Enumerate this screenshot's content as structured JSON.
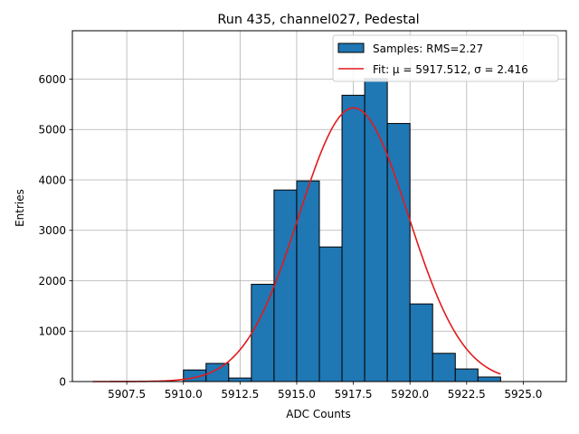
{
  "chart_data": {
    "type": "bar",
    "title": "Run 435, channel027, Pedestal",
    "xlabel": "ADC Counts",
    "ylabel": "Entries",
    "xlim": [
      5905.1,
      5926.9
    ],
    "ylim": [
      0,
      6960
    ],
    "xticks": [
      5907.5,
      5910.0,
      5912.5,
      5915.0,
      5917.5,
      5920.0,
      5922.5,
      5925.0
    ],
    "xtick_labels": [
      "5907.5",
      "5910.0",
      "5912.5",
      "5915.0",
      "5917.5",
      "5920.0",
      "5922.5",
      "5925.0"
    ],
    "yticks": [
      0,
      1000,
      2000,
      3000,
      4000,
      5000,
      6000
    ],
    "ytick_labels": [
      "0",
      "1000",
      "2000",
      "3000",
      "4000",
      "5000",
      "6000"
    ],
    "grid": true,
    "histogram": {
      "name": "Samples: RMS=2.27",
      "color": "#1f77b4",
      "edge_color": "#000000",
      "bins": [
        {
          "x0": 5910.0,
          "x1": 5911.0,
          "value": 230
        },
        {
          "x0": 5911.0,
          "x1": 5912.0,
          "value": 360
        },
        {
          "x0": 5912.0,
          "x1": 5913.0,
          "value": 70
        },
        {
          "x0": 5913.0,
          "x1": 5914.0,
          "value": 1930
        },
        {
          "x0": 5914.0,
          "x1": 5915.0,
          "value": 3800
        },
        {
          "x0": 5915.0,
          "x1": 5916.0,
          "value": 3980
        },
        {
          "x0": 5916.0,
          "x1": 5917.0,
          "value": 2670
        },
        {
          "x0": 5917.0,
          "x1": 5918.0,
          "value": 5680
        },
        {
          "x0": 5918.0,
          "x1": 5919.0,
          "value": 6010
        },
        {
          "x0": 5919.0,
          "x1": 5920.0,
          "value": 5120
        },
        {
          "x0": 5920.0,
          "x1": 5921.0,
          "value": 1540
        },
        {
          "x0": 5921.0,
          "x1": 5922.0,
          "value": 560
        },
        {
          "x0": 5922.0,
          "x1": 5923.0,
          "value": 250
        },
        {
          "x0": 5923.0,
          "x1": 5924.0,
          "value": 90
        }
      ]
    },
    "fit": {
      "label": "Fit: μ = 5917.512, σ = 2.416",
      "mu": 5917.512,
      "sigma": 2.416,
      "amplitude": 5430,
      "x_range": [
        5906,
        5924
      ],
      "color": "#e31a1c"
    },
    "legend": {
      "placement": "upper right",
      "entries": [
        "Samples: RMS=2.27",
        "Fit: μ = 5917.512, σ = 2.416"
      ]
    }
  }
}
